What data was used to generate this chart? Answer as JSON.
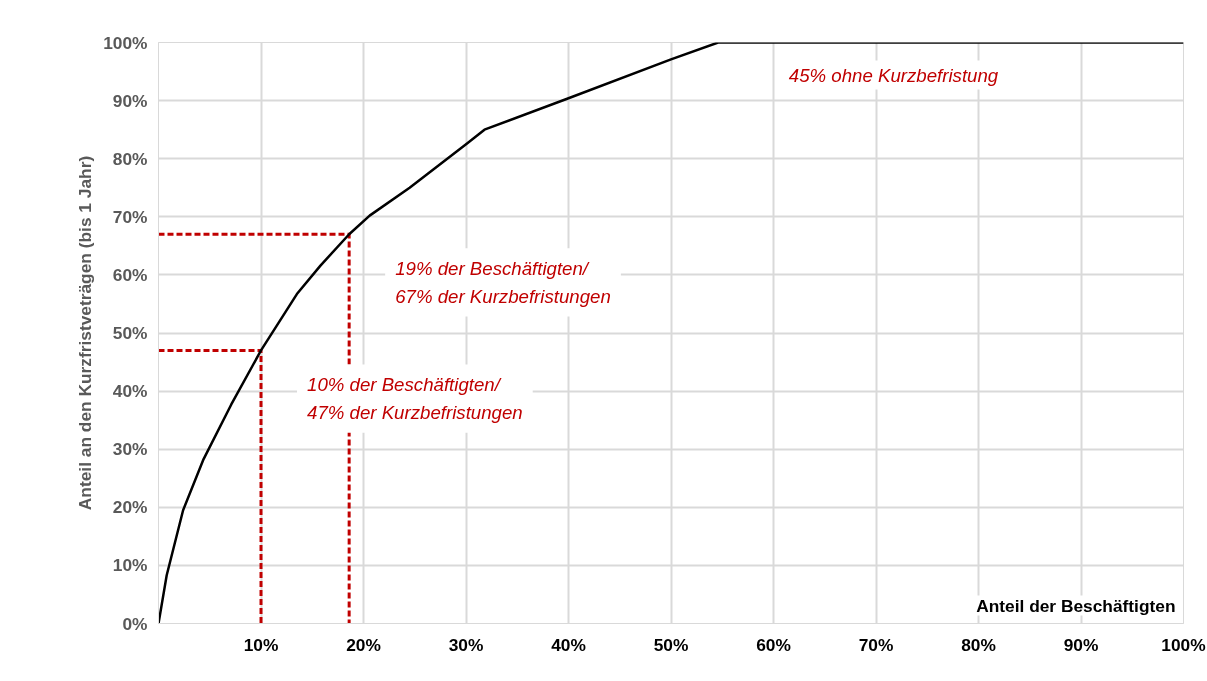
{
  "chart_data": {
    "type": "line",
    "xlabel": "Anteil der Beschäftigten",
    "ylabel": "Anteil an den Kurzfristveträgen (bis 1 Jahr)",
    "xlim": [
      0,
      100
    ],
    "ylim": [
      0,
      100
    ],
    "xticks": [
      {
        "value": 10,
        "label": "10%"
      },
      {
        "value": 20,
        "label": "20%"
      },
      {
        "value": 30,
        "label": "30%"
      },
      {
        "value": 40,
        "label": "40%"
      },
      {
        "value": 50,
        "label": "50%"
      },
      {
        "value": 60,
        "label": "60%"
      },
      {
        "value": 70,
        "label": "70%"
      },
      {
        "value": 80,
        "label": "80%"
      },
      {
        "value": 90,
        "label": "90%"
      },
      {
        "value": 100,
        "label": "100%"
      }
    ],
    "yticks": [
      {
        "value": 0,
        "label": "0%"
      },
      {
        "value": 10,
        "label": "10%"
      },
      {
        "value": 20,
        "label": "20%"
      },
      {
        "value": 30,
        "label": "30%"
      },
      {
        "value": 40,
        "label": "40%"
      },
      {
        "value": 50,
        "label": "50%"
      },
      {
        "value": 60,
        "label": "60%"
      },
      {
        "value": 70,
        "label": "70%"
      },
      {
        "value": 80,
        "label": "80%"
      },
      {
        "value": 90,
        "label": "90%"
      },
      {
        "value": 100,
        "label": "100%"
      }
    ],
    "grid": true,
    "series": [
      {
        "color": "#000000",
        "line_style": "solid",
        "x": [
          0,
          0.8,
          2.4,
          4.4,
          7.1,
          10,
          13.5,
          15.8,
          18.6,
          20.6,
          24.5,
          30.1,
          31.8,
          40,
          50,
          54.6,
          100
        ],
        "values": [
          0,
          8.3,
          19.5,
          28.3,
          37.7,
          47,
          56.7,
          61.6,
          67,
          70.2,
          75,
          82.6,
          85,
          90.4,
          97.1,
          100,
          100
        ]
      },
      {
        "color": "#c00000",
        "line_style": "dashed",
        "x": [
          0,
          10,
          10
        ],
        "values": [
          47,
          47,
          0
        ]
      },
      {
        "color": "#c00000",
        "line_style": "dashed",
        "x": [
          0,
          18.6,
          18.6
        ],
        "values": [
          67,
          67,
          0
        ]
      }
    ],
    "annotations": [
      {
        "text": "10% der Beschäftigten/\n47% der Kurzbefristungen",
        "x": 10,
        "y": 47
      },
      {
        "text": "19% der Beschäftigten/\n67% der Kurzbefristungen",
        "x": 18.6,
        "y": 67
      },
      "45% ohne Kurzbefristung"
    ]
  }
}
